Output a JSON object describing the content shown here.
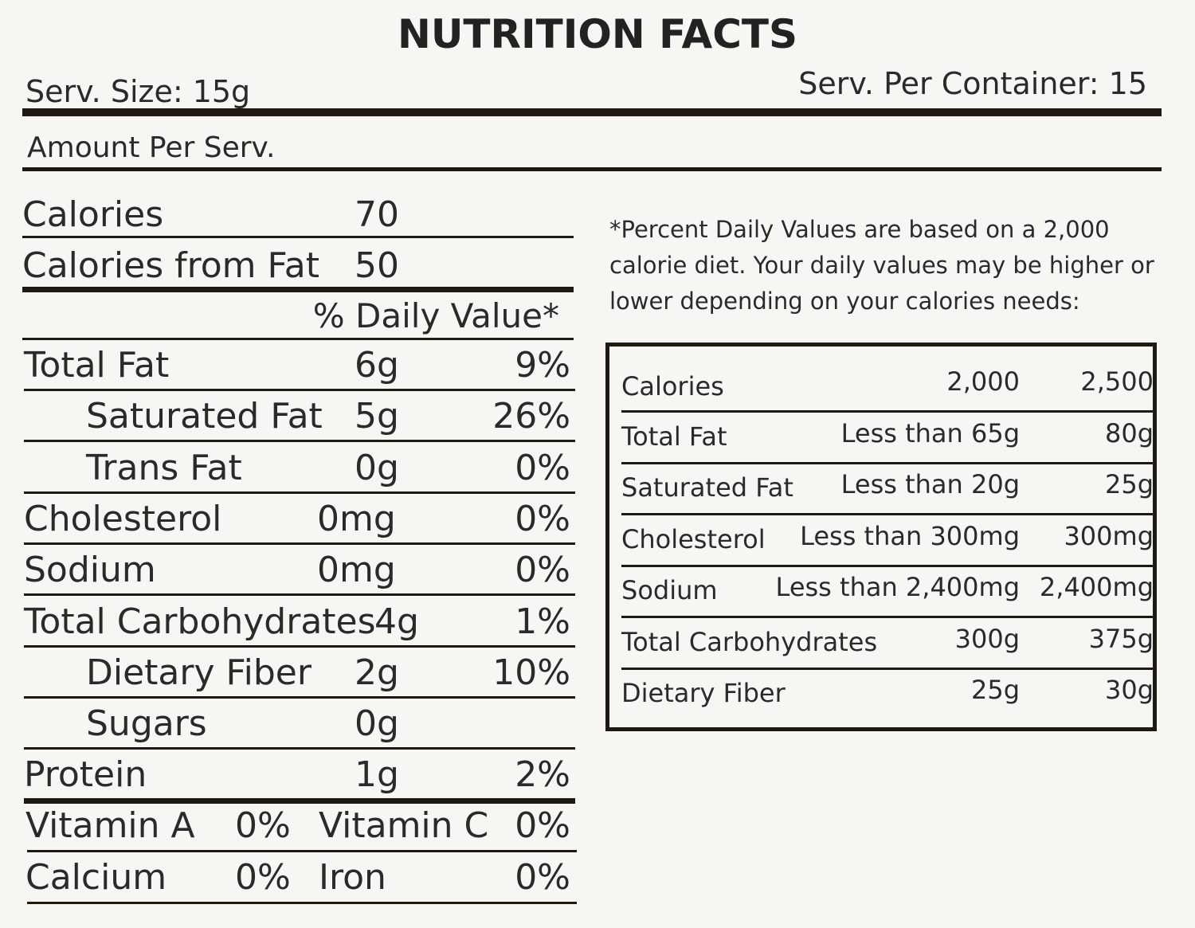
{
  "title": "NUTRITION FACTS",
  "serving_size": "Serv. Size: 15g",
  "servings_per_container": "Serv. Per Container: 15",
  "amount_per_serving": "Amount Per Serv.",
  "calories": [
    [
      "Calories",
      "70"
    ],
    [
      "Calories from Fat",
      "50"
    ]
  ],
  "daily_value_header": "% Daily Value*",
  "nutrients": [
    {
      "label": "Total Fat",
      "amount": "6g",
      "dv": "9%",
      "indent": false
    },
    {
      "label": "Saturated Fat",
      "amount": "5g",
      "dv": "26%",
      "indent": true
    },
    {
      "label": "Trans Fat",
      "amount": "0g",
      "dv": "0%",
      "indent": true
    },
    {
      "label": "Cholesterol",
      "amount": "0mg",
      "dv": "0%",
      "indent": false
    },
    {
      "label": "Sodium",
      "amount": "0mg",
      "dv": "0%",
      "indent": false
    },
    {
      "label": "Total Carbohydrates",
      "amount": "4g",
      "dv": "1%",
      "indent": false
    },
    {
      "label": "Dietary Fiber",
      "amount": "2g",
      "dv": "10%",
      "indent": true
    },
    {
      "label": "Sugars",
      "amount": "0g",
      "indent": true
    },
    {
      "label": "Protein",
      "amount": "1g",
      "dv": "2%",
      "indent": false
    }
  ],
  "vitamins": [
    [
      "Vitamin A",
      "0%",
      "Vitamin C",
      "0%"
    ],
    [
      "Calcium",
      "0%",
      "Iron",
      "0%"
    ]
  ],
  "footnote": "*Percent Daily Values are based on a 2,000 calorie diet. Your daily values may be higher or lower depending on your calories needs:",
  "reference": [
    [
      "Calories",
      "2,000",
      "2,500"
    ],
    [
      "Total Fat",
      "Less than 65g",
      "80g"
    ],
    [
      "Saturated Fat",
      "Less than 20g",
      "25g"
    ],
    [
      "Cholesterol",
      "Less than 300mg",
      "300mg"
    ],
    [
      "Sodium",
      "Less than 2,400mg",
      "2,400mg"
    ],
    [
      "Total Carbohydrates",
      "300g",
      "375g"
    ],
    [
      "Dietary Fiber",
      "25g",
      "30g"
    ]
  ]
}
